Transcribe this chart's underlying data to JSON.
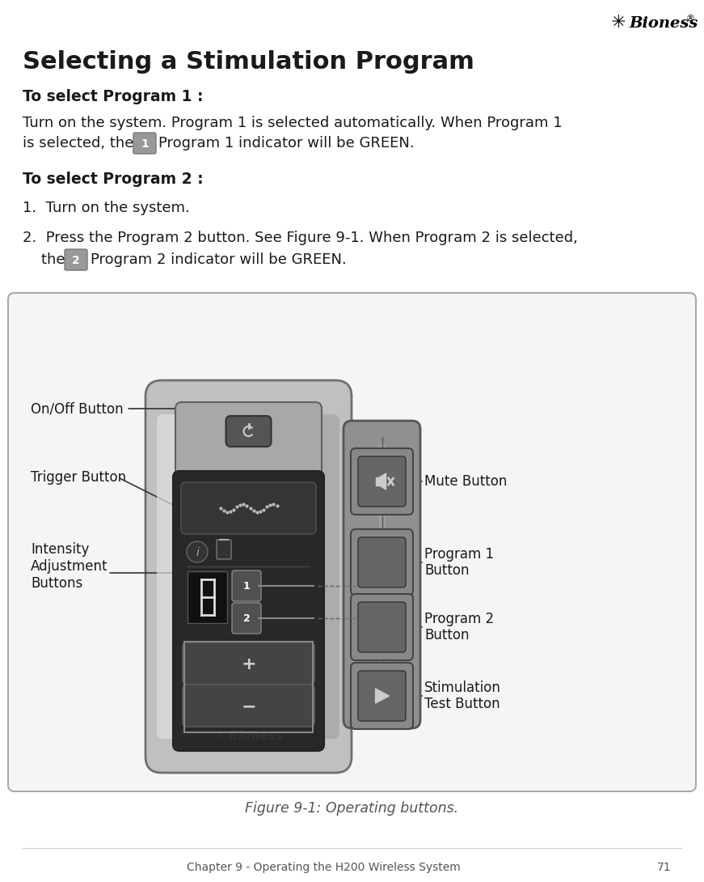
{
  "title": "Selecting a Stimulation Program",
  "header_chapter": "71",
  "header_section": "Chapter 9 - Operating the H200 Wireless System",
  "bg_color": "#ffffff",
  "text_color": "#1a1a1a",
  "heading1": "To select Program 1 :",
  "para1_line1": "Turn on the system. Program 1 is selected automatically. When Program 1",
  "para1_line2_pre": "is selected, the",
  "para1_line2_post": "Program 1 indicator will be GREEN.",
  "heading2": "To select Program 2 :",
  "step1": "1.  Turn on the system.",
  "step2_line1": "2.  Press the Program 2 button. See Figure 9-1. When Program 2 is selected,",
  "step2_line2_pre": "    the",
  "step2_line2_post": "Program 2 indicator will be GREEN.",
  "figure_caption": "Figure 9-1: Operating buttons.",
  "label_onoff": "On/Off Button",
  "label_trigger": "Trigger Button",
  "label_intensity": "Intensity\nAdjustment\nButtons",
  "label_mute": "Mute Button",
  "label_prog1": "Program 1\nButton",
  "label_prog2": "Program 2\nButton",
  "label_stim": "Stimulation\nTest Button",
  "silver_light": "#d8d8d8",
  "silver_mid": "#b8b8b8",
  "silver_dark": "#909090",
  "dark_panel": "#2a2a2a",
  "dark_btn": "#383838",
  "btn_outline": "#555555",
  "remote_body": "#888888",
  "remote_light": "#aaaaaa",
  "remote_dark": "#666666",
  "remote_btn": "#707070",
  "remote_btn_dark": "#555555"
}
